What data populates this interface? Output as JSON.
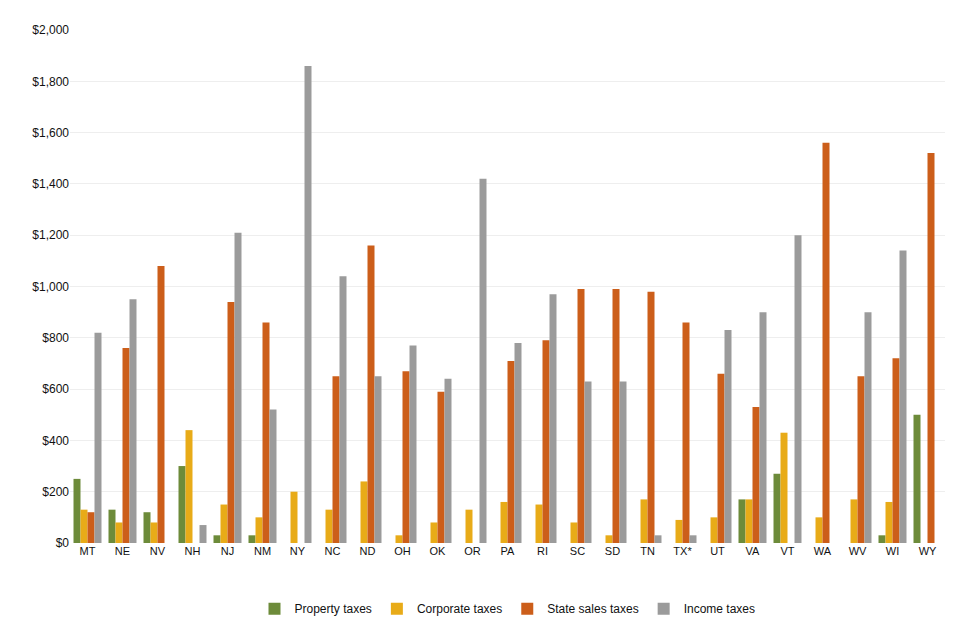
{
  "chart_data": {
    "type": "bar",
    "categories": [
      "MT",
      "NE",
      "NV",
      "NH",
      "NJ",
      "NM",
      "NY",
      "NC",
      "ND",
      "OH",
      "OK",
      "OR",
      "PA",
      "RI",
      "SC",
      "SD",
      "TN",
      "TX*",
      "UT",
      "VA",
      "VT",
      "WA",
      "WV",
      "WI",
      "WY"
    ],
    "series": [
      {
        "name": "Property taxes",
        "color": "#6d8b3a",
        "values": [
          250,
          130,
          120,
          300,
          30,
          30,
          0,
          0,
          0,
          0,
          0,
          0,
          0,
          0,
          0,
          0,
          0,
          0,
          0,
          170,
          270,
          0,
          0,
          30,
          500
        ]
      },
      {
        "name": "Corporate taxes",
        "color": "#e8ab18",
        "values": [
          130,
          80,
          80,
          440,
          150,
          100,
          200,
          130,
          240,
          30,
          80,
          130,
          160,
          150,
          80,
          30,
          170,
          90,
          100,
          170,
          430,
          100,
          170,
          160,
          0
        ]
      },
      {
        "name": "State sales taxes",
        "color": "#cc5e1a",
        "values": [
          120,
          760,
          1080,
          0,
          940,
          860,
          0,
          650,
          1160,
          670,
          590,
          0,
          710,
          790,
          990,
          990,
          980,
          860,
          660,
          530,
          0,
          1560,
          650,
          720,
          1520
        ]
      },
      {
        "name": "Income taxes",
        "color": "#9b9b9b",
        "values": [
          820,
          950,
          0,
          70,
          1210,
          520,
          1860,
          1040,
          650,
          770,
          640,
          1420,
          780,
          970,
          630,
          630,
          30,
          30,
          830,
          900,
          1200,
          0,
          900,
          1140,
          0
        ]
      }
    ],
    "ylim": [
      0,
      2000
    ],
    "yticks": [
      {
        "value": 0,
        "label": "$0"
      },
      {
        "value": 200,
        "label": "$200"
      },
      {
        "value": 400,
        "label": "$400"
      },
      {
        "value": 600,
        "label": "$600"
      },
      {
        "value": 800,
        "label": "$800"
      },
      {
        "value": 1000,
        "label": "$1,000"
      },
      {
        "value": 1200,
        "label": "$1,200"
      },
      {
        "value": 1400,
        "label": "$1,400"
      },
      {
        "value": 1600,
        "label": "$1,600"
      },
      {
        "value": 1800,
        "label": "$1,800"
      },
      {
        "value": 2000,
        "label": "$2,000"
      }
    ],
    "grid": true,
    "legend": "bottom"
  }
}
